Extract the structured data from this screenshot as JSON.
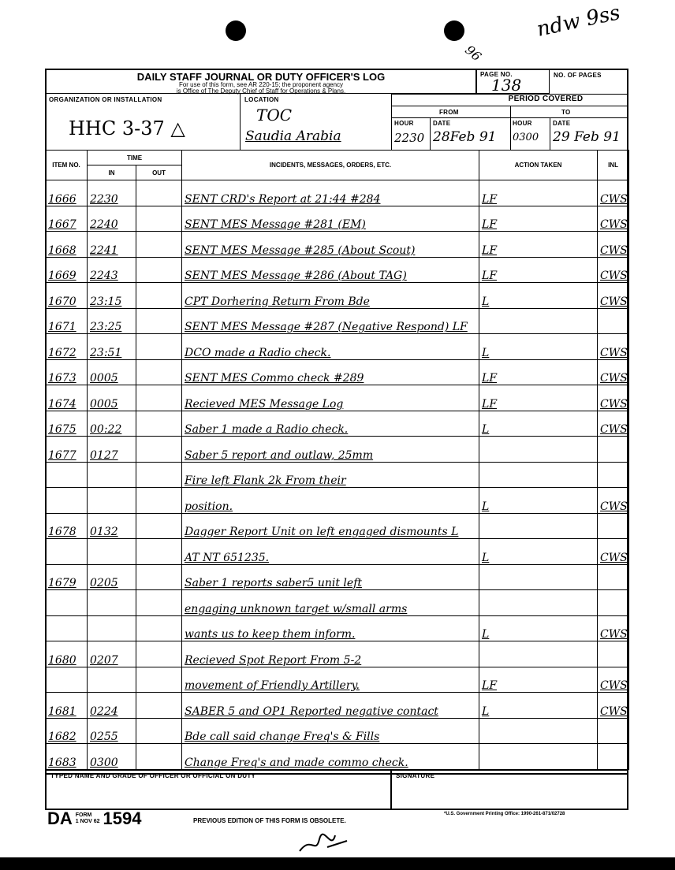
{
  "margin_marks": {
    "top_right": "ndw 9ss",
    "num": "96"
  },
  "header": {
    "title": "DAILY STAFF JOURNAL OR DUTY OFFICER'S LOG",
    "subtitle1": "For use of this form, see AR 220-15; the proponent agency",
    "subtitle2": "is Office of The Deputy Chief of Staff for Operations & Plans.",
    "page_no_label": "PAGE NO.",
    "page_no": "138",
    "no_pages_label": "NO. OF PAGES",
    "org_label": "ORGANIZATION OR INSTALLATION",
    "org": "HHC 3-37 △",
    "location_label": "LOCATION",
    "location1": "TOC",
    "location2": "Saudia Arabia",
    "period_label": "PERIOD COVERED",
    "from_label": "FROM",
    "to_label": "TO",
    "hour_label": "HOUR",
    "date_label": "DATE",
    "from_hour": "2230",
    "from_date": "28Feb 91",
    "to_hour": "0300",
    "to_date": "29 Feb 91"
  },
  "columns": {
    "item": "ITEM NO.",
    "time": "TIME",
    "in": "IN",
    "out": "OUT",
    "incidents": "INCIDENTS, MESSAGES, ORDERS, ETC.",
    "action": "ACTION TAKEN",
    "inl": "INL"
  },
  "rows": [
    {
      "item": "1666",
      "in": "2230",
      "text": "SENT CRD's Report at 21:44 #284",
      "action": "LF",
      "inl": "CWS"
    },
    {
      "item": "1667",
      "in": "2240",
      "text": "SENT MES Message #281 (EM)",
      "action": "LF",
      "inl": "CWS"
    },
    {
      "item": "1668",
      "in": "2241",
      "text": "SENT MES Message #285 (About Scout)",
      "action": "LF",
      "inl": "CWS"
    },
    {
      "item": "1669",
      "in": "2243",
      "text": "SENT MES Message #286 (About TAG)",
      "action": "LF",
      "inl": "CWS"
    },
    {
      "item": "1670",
      "in": "23:15",
      "text": "CPT Dorhering Return From Bde",
      "action": "L",
      "inl": "CWS"
    },
    {
      "item": "1671",
      "in": "23:25",
      "text": "SENT MES Message #287 (Negative Respond) LF",
      "action": "",
      "inl": ""
    },
    {
      "item": "1672",
      "in": "23:51",
      "text": "DCO made a Radio check.",
      "action": "L",
      "inl": "CWS"
    },
    {
      "item": "1673",
      "in": "0005",
      "text": "SENT MES Commo check #289",
      "action": "LF",
      "inl": "CWS"
    },
    {
      "item": "1674",
      "in": "0005",
      "text": "Recieved MES Message Log",
      "action": "LF",
      "inl": "CWS"
    },
    {
      "item": "1675",
      "in": "00:22",
      "text": "Saber 1 made a Radio check.",
      "action": "L",
      "inl": "CWS"
    },
    {
      "item": "1677",
      "in": "0127",
      "text": "Saber 5 report and outlaw, 25mm",
      "action": "",
      "inl": ""
    },
    {
      "item": "",
      "in": "",
      "text": "Fire left Flank 2k From their",
      "action": "",
      "inl": ""
    },
    {
      "item": "",
      "in": "",
      "text": "position.",
      "action": "L",
      "inl": "CWS"
    },
    {
      "item": "1678",
      "in": "0132",
      "text": "Dagger Report Unit on left engaged dismounts L",
      "action": "",
      "inl": ""
    },
    {
      "item": "",
      "in": "",
      "text": "AT NT 651235.",
      "action": "L",
      "inl": "CWS"
    },
    {
      "item": "1679",
      "in": "0205",
      "text": "Saber 1 reports saber5 unit left",
      "action": "",
      "inl": ""
    },
    {
      "item": "",
      "in": "",
      "text": "engaging unknown target w/small arms",
      "action": "",
      "inl": ""
    },
    {
      "item": "",
      "in": "",
      "text": "wants us to keep them inform.",
      "action": "L",
      "inl": "CWS"
    },
    {
      "item": "1680",
      "in": "0207",
      "text": "Recieved Spot Report From 5-2",
      "action": "",
      "inl": ""
    },
    {
      "item": "",
      "in": "",
      "text": "movement of Friendly Artillery.",
      "action": "LF",
      "inl": "CWS"
    },
    {
      "item": "1681",
      "in": "0224",
      "text": "SABER 5 and OP1 Reported negative contact",
      "action": "L",
      "inl": "CWS"
    },
    {
      "item": "1682",
      "in": "0255",
      "text": "Bde call said change Freq's & Fills",
      "action": "",
      "inl": ""
    },
    {
      "item": "1683",
      "in": "0300",
      "text": "Change Freq's and made commo check.",
      "action": "",
      "inl": ""
    }
  ],
  "footer": {
    "officer_label": "TYPED NAME AND GRADE OF OFFICER OR OFFICIAL ON DUTY",
    "signature_label": "SIGNATURE",
    "form_da": "DA",
    "form_word": "FORM",
    "form_date": "1 NOV 62",
    "form_no": "1594",
    "obsolete": "PREVIOUS EDITION OF THIS FORM IS OBSOLETE.",
    "gpo": "*U.S. Government Printing Office: 1990-261-871/02728"
  }
}
